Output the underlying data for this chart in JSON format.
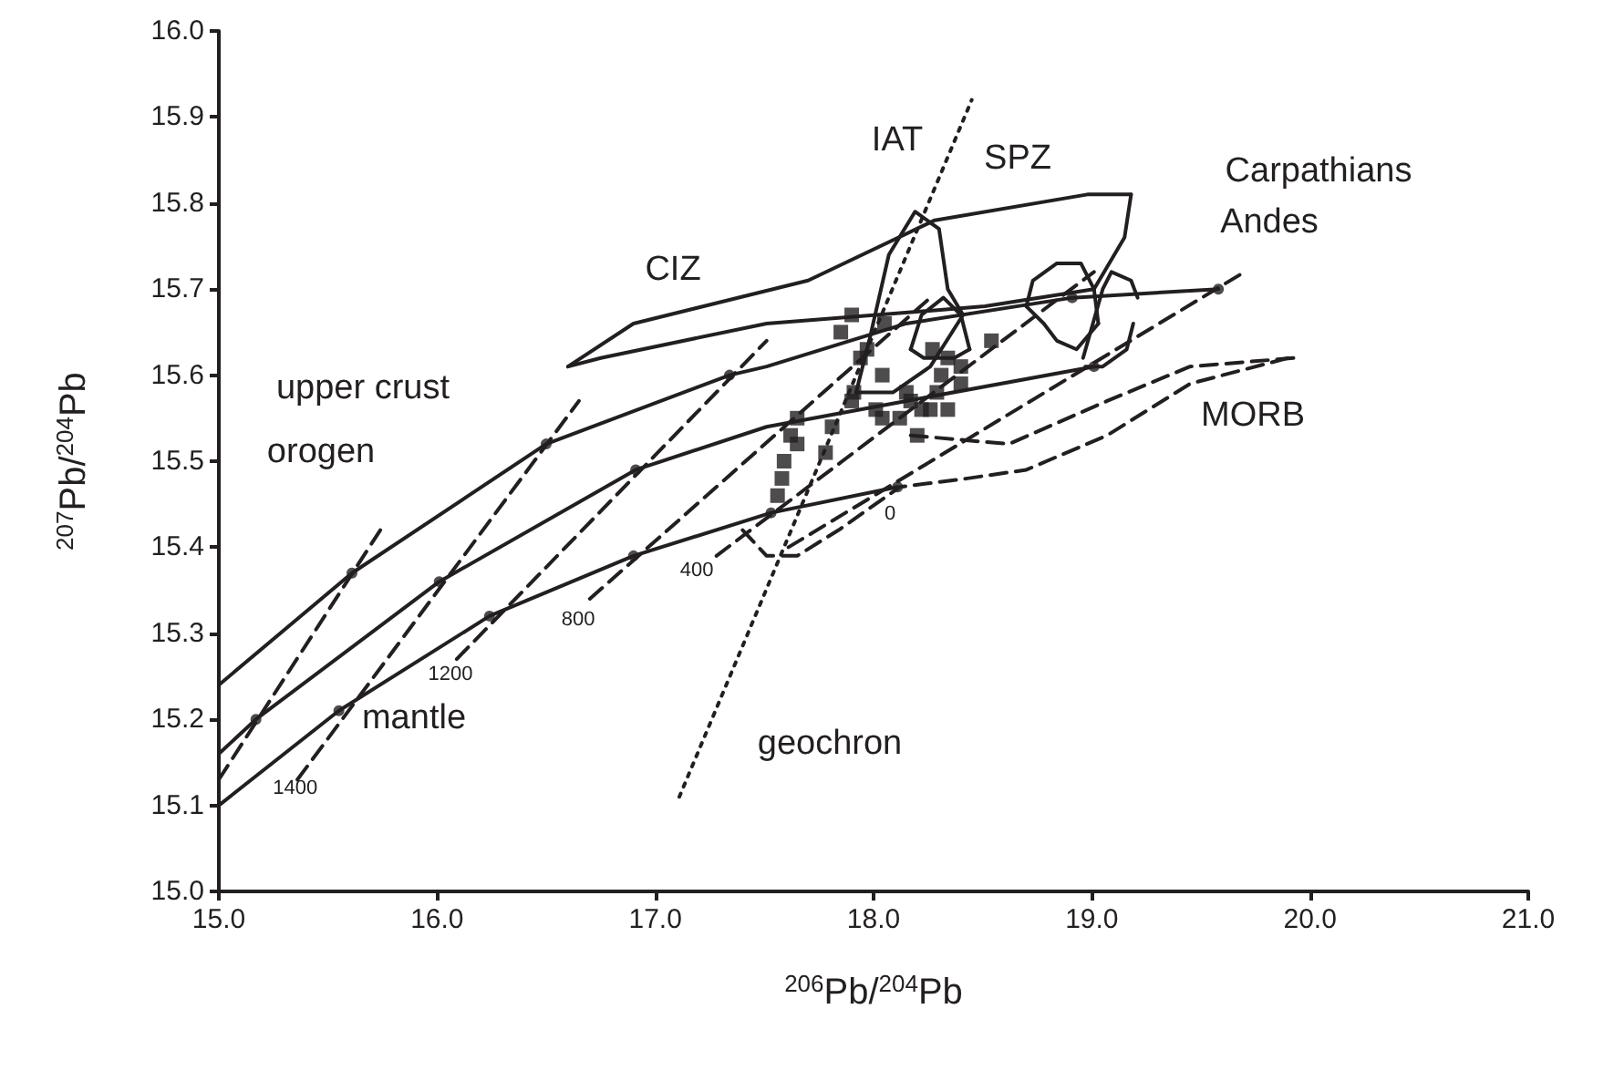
{
  "chart_data": {
    "type": "line",
    "xlabel": "$^{206}$Pb/$^{204}$Pb",
    "ylabel": "$^{207}$Pb/$^{204}$Pb",
    "xlim": [
      15,
      21
    ],
    "ylim": [
      15,
      16
    ],
    "xticks": [
      {
        "value": 15,
        "label": "15.0"
      },
      {
        "value": 16,
        "label": "16.0"
      },
      {
        "value": 17,
        "label": "17.0"
      },
      {
        "value": 18,
        "label": "18.0"
      },
      {
        "value": 19,
        "label": "19.0"
      },
      {
        "value": 20,
        "label": "20.0"
      },
      {
        "value": 21,
        "label": "21.0"
      }
    ],
    "yticks": [
      {
        "value": 15,
        "label": "15.0"
      },
      15.1,
      15.2,
      15.3,
      15.4,
      15.5,
      15.6,
      15.7,
      15.8,
      15.9,
      {
        "value": 16,
        "label": "16.0"
      }
    ],
    "grid": false,
    "series": [
      {
        "color": "#231f20",
        "line_style": "solid",
        "marker": "none",
        "x": [
          15.0,
          15.61,
          16.5,
          17.34,
          17.51,
          18.15,
          18.91,
          19.58
        ],
        "values": [
          15.24,
          15.37,
          15.52,
          15.6,
          15.61,
          15.66,
          15.69,
          15.7
        ]
      },
      {
        "color": "#231f20",
        "line_style": "solid",
        "marker": "none",
        "x": [
          15.0,
          15.17,
          16.01,
          16.91,
          17.51,
          18.15,
          19.01
        ],
        "values": [
          15.16,
          15.2,
          15.36,
          15.49,
          15.54,
          15.57,
          15.61
        ]
      },
      {
        "color": "#231f20",
        "line_style": "solid",
        "marker": "none",
        "x": [
          15.0,
          15.55,
          16.24,
          16.9,
          17.53,
          18.11
        ],
        "values": [
          15.1,
          15.21,
          15.32,
          15.39,
          15.44,
          15.47
        ]
      },
      {
        "type": "scatter",
        "color": "#231f20",
        "marker": "circle",
        "x": [
          15.61,
          16.5,
          17.34,
          18.91,
          19.58,
          15.17,
          16.01,
          16.91,
          19.01,
          15.55,
          16.24,
          16.9,
          17.53,
          18.11
        ],
        "values": [
          15.37,
          15.52,
          15.6,
          15.69,
          15.7,
          15.2,
          15.36,
          15.49,
          15.61,
          15.21,
          15.32,
          15.39,
          15.44,
          15.47
        ]
      },
      {
        "color": "#231f20",
        "line_style": "dashed",
        "marker": "none",
        "x": [
          15.0,
          15.74
        ],
        "values": [
          15.13,
          15.42
        ]
      },
      {
        "color": "#231f20",
        "line_style": "dashed",
        "marker": "none",
        "x": [
          15.36,
          16.65
        ],
        "values": [
          15.13,
          15.57
        ]
      },
      {
        "color": "#231f20",
        "line_style": "dashed",
        "marker": "none",
        "x": [
          16.09,
          17.51
        ],
        "values": [
          15.27,
          15.64
        ]
      },
      {
        "color": "#231f20",
        "line_style": "dashed",
        "marker": "none",
        "x": [
          16.7,
          18.26
        ],
        "values": [
          15.34,
          15.69
        ]
      },
      {
        "color": "#231f20",
        "line_style": "dashed",
        "marker": "none",
        "x": [
          17.28,
          19.01
        ],
        "values": [
          15.39,
          15.72
        ]
      },
      {
        "color": "#231f20",
        "line_style": "dashed",
        "marker": "none",
        "x": [
          17.61,
          19.7
        ],
        "values": [
          15.4,
          15.72
        ]
      },
      {
        "color": "#231f20",
        "line_style": "dotted",
        "marker": "none",
        "x": [
          17.11,
          18.45
        ],
        "values": [
          15.11,
          15.92
        ]
      },
      {
        "color": "#231f20",
        "line_style": "solid",
        "marker": "none",
        "x": [
          16.6,
          16.9,
          17.7,
          18.28,
          18.98,
          19.18
        ],
        "values": [
          15.61,
          15.66,
          15.71,
          15.78,
          15.81,
          15.81
        ]
      },
      {
        "color": "#231f20",
        "line_style": "solid",
        "marker": "none",
        "x": [
          16.6,
          16.75,
          17.51,
          18.51,
          19.01,
          19.15,
          19.18
        ],
        "values": [
          15.61,
          15.62,
          15.66,
          15.68,
          15.7,
          15.76,
          15.81
        ]
      },
      {
        "color": "#231f20",
        "line_style": "solid",
        "marker": "none",
        "x": [
          17.92,
          17.98,
          18.07,
          18.19,
          18.3,
          18.34,
          18.41
        ],
        "values": [
          15.58,
          15.64,
          15.74,
          15.79,
          15.77,
          15.7,
          15.67
        ]
      },
      {
        "color": "#231f20",
        "line_style": "solid",
        "marker": "none",
        "x": [
          17.92,
          18.09,
          18.26,
          18.41
        ],
        "values": [
          15.58,
          15.58,
          15.61,
          15.67
        ]
      },
      {
        "color": "#231f20",
        "line_style": "solid",
        "marker": "none",
        "x": [
          18.17,
          18.22,
          18.32,
          18.4,
          18.44
        ],
        "values": [
          15.63,
          15.67,
          15.69,
          15.67,
          15.63
        ]
      },
      {
        "color": "#231f20",
        "line_style": "solid",
        "marker": "none",
        "x": [
          18.17,
          18.23,
          18.37,
          18.44
        ],
        "values": [
          15.63,
          15.62,
          15.62,
          15.63
        ]
      },
      {
        "color": "#231f20",
        "line_style": "solid",
        "marker": "none",
        "x": [
          18.7,
          18.73,
          18.84,
          18.95,
          19.01,
          19.03
        ],
        "values": [
          15.68,
          15.71,
          15.73,
          15.73,
          15.7,
          15.66
        ]
      },
      {
        "color": "#231f20",
        "line_style": "solid",
        "marker": "none",
        "x": [
          18.7,
          18.78,
          18.84,
          18.93,
          19.03
        ],
        "values": [
          15.68,
          15.66,
          15.64,
          15.63,
          15.66
        ]
      },
      {
        "color": "#231f20",
        "line_style": "solid",
        "marker": "none",
        "x": [
          18.96,
          19.05,
          19.09,
          19.18,
          19.21
        ],
        "values": [
          15.62,
          15.7,
          15.72,
          15.71,
          15.69
        ]
      },
      {
        "color": "#231f20",
        "line_style": "solid",
        "marker": "none",
        "x": [
          18.97,
          19.05,
          19.16,
          19.19
        ],
        "values": [
          15.61,
          15.61,
          15.63,
          15.66
        ]
      },
      {
        "color": "#231f20",
        "line_style": "dashed",
        "marker": "none",
        "x": [
          18.17,
          18.62,
          19.07,
          19.45,
          19.93
        ],
        "values": [
          15.53,
          15.52,
          15.57,
          15.61,
          15.62
        ]
      },
      {
        "color": "#231f20",
        "line_style": "dashed",
        "marker": "none",
        "x": [
          17.4,
          17.51,
          17.65,
          17.84,
          18.12,
          18.43,
          18.7,
          19.07,
          19.45,
          19.9
        ],
        "values": [
          15.42,
          15.39,
          15.39,
          15.42,
          15.47,
          15.48,
          15.49,
          15.53,
          15.59,
          15.62
        ]
      },
      {
        "type": "scatter",
        "color": "#231f20",
        "marker": "square",
        "x": [
          17.9,
          17.85,
          18.05,
          17.97,
          17.94,
          18.04,
          17.91,
          17.9,
          18.01,
          18.04,
          18.15,
          18.17,
          18.22,
          18.26,
          18.2,
          18.27,
          18.34,
          18.4,
          18.31,
          18.54,
          17.65,
          17.62,
          17.81,
          17.78,
          17.65,
          17.59,
          17.58,
          17.56,
          18.4,
          18.29,
          18.12,
          18.34
        ],
        "values": [
          15.67,
          15.65,
          15.66,
          15.63,
          15.62,
          15.6,
          15.58,
          15.57,
          15.56,
          15.55,
          15.58,
          15.57,
          15.56,
          15.56,
          15.53,
          15.63,
          15.62,
          15.61,
          15.6,
          15.64,
          15.55,
          15.53,
          15.54,
          15.51,
          15.52,
          15.5,
          15.48,
          15.46,
          15.59,
          15.58,
          15.55,
          15.56
        ]
      }
    ],
    "annotations": [
      "upper crust",
      "orogen",
      "mantle",
      "CIZ",
      "IAT",
      "SPZ",
      "Carpathians",
      "Andes",
      "MORB",
      "geochron",
      {
        "text": "1400",
        "x": 15.35,
        "y": 15.12
      },
      "1200",
      "800",
      "400",
      "0"
    ]
  }
}
